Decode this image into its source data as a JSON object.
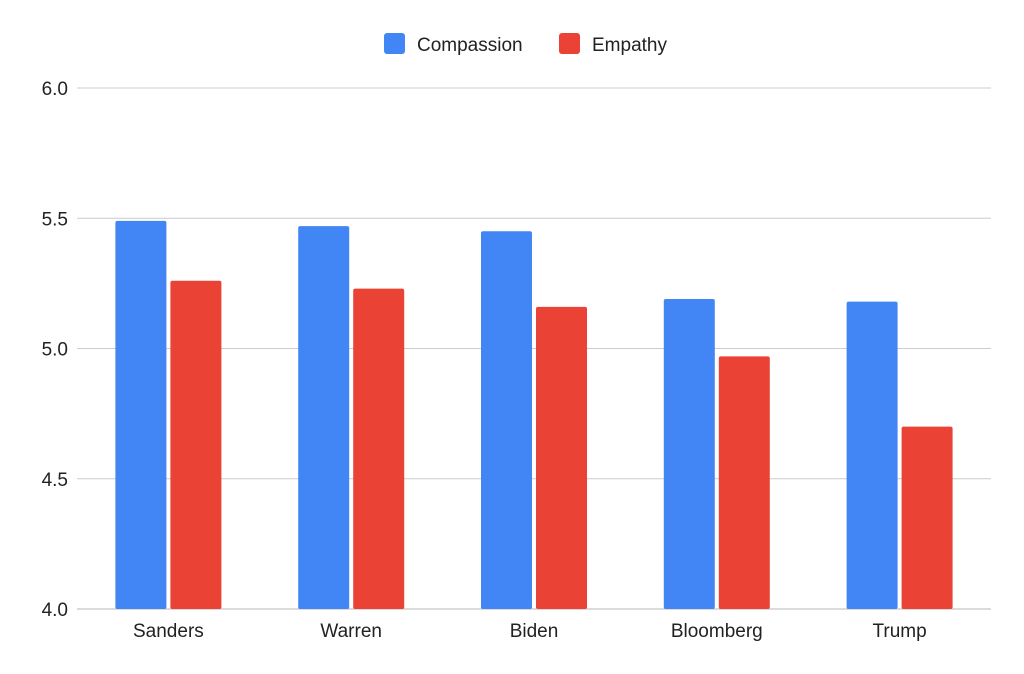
{
  "chart_data": {
    "type": "bar",
    "title": "",
    "xlabel": "",
    "ylabel": "",
    "categories": [
      "Sanders",
      "Warren",
      "Biden",
      "Bloomberg",
      "Trump"
    ],
    "series": [
      {
        "name": "Compassion",
        "color": "#4285F4",
        "values": [
          5.49,
          5.47,
          5.45,
          5.19,
          5.18
        ]
      },
      {
        "name": "Empathy",
        "color": "#EA4335",
        "values": [
          5.26,
          5.23,
          5.16,
          4.97,
          4.7
        ]
      }
    ],
    "ylim": [
      4.0,
      6.0
    ],
    "yticks": [
      "4.0",
      "4.5",
      "5.0",
      "5.5",
      "6.0"
    ],
    "grid": true,
    "legend_position": "top-center"
  }
}
